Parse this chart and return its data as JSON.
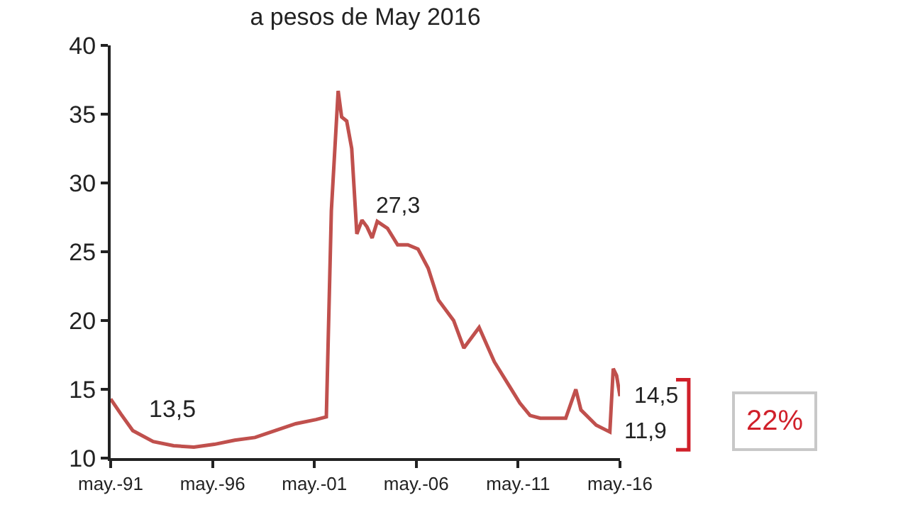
{
  "chart_data": {
    "type": "line",
    "title": "a pesos de May 2016",
    "x": [
      "1991-05",
      "1991-11",
      "1992-06",
      "1993-06",
      "1994-06",
      "1995-06",
      "1996-06",
      "1997-06",
      "1998-06",
      "1999-06",
      "2000-06",
      "2001-06",
      "2001-12",
      "2002-03",
      "2002-07",
      "2002-09",
      "2002-12",
      "2003-03",
      "2003-06",
      "2003-09",
      "2003-12",
      "2004-03",
      "2004-06",
      "2004-12",
      "2005-06",
      "2005-12",
      "2006-06",
      "2006-12",
      "2007-06",
      "2008-03",
      "2008-09",
      "2009-06",
      "2010-03",
      "2010-12",
      "2011-06",
      "2011-12",
      "2012-06",
      "2013-09",
      "2014-03",
      "2014-06",
      "2015-03",
      "2015-11",
      "2016-01",
      "2016-03",
      "2016-05"
    ],
    "series": [
      {
        "color": "#c0504d",
        "values": [
          14.3,
          13.2,
          12.0,
          11.2,
          10.9,
          10.8,
          11.0,
          11.3,
          11.5,
          12.0,
          12.5,
          12.8,
          13.0,
          28.0,
          36.7,
          34.8,
          34.5,
          32.5,
          26.3,
          27.3,
          26.8,
          26.0,
          27.2,
          26.7,
          25.5,
          25.5,
          25.2,
          23.8,
          21.5,
          20.0,
          18.0,
          19.5,
          17.0,
          15.2,
          14.0,
          13.1,
          12.9,
          12.9,
          15.0,
          13.5,
          12.4,
          11.9,
          16.5,
          16.0,
          14.5
        ]
      }
    ],
    "xlim": [
      "1991-05",
      "2016-05"
    ],
    "xticks": [
      {
        "value": "1991-05",
        "label": "may.-91"
      },
      {
        "value": "1996-05",
        "label": "may.-96"
      },
      {
        "value": "2001-05",
        "label": "may.-01"
      },
      {
        "value": "2006-05",
        "label": "may.-06"
      },
      {
        "value": "2011-05",
        "label": "may.-11"
      },
      {
        "value": "2016-05",
        "label": "may.-16"
      }
    ],
    "ylim": [
      10,
      40
    ],
    "yticks": [
      10,
      15,
      20,
      25,
      30,
      35,
      40
    ],
    "marker": "none",
    "line_style": "solid",
    "annotations": [
      "13,5",
      {
        "text": "27,3",
        "x": "2003-09",
        "y": 27.3
      },
      {
        "text": "14,5",
        "x": "2016-05",
        "y": 14.5
      },
      {
        "text": "11,9",
        "x": "2015-11",
        "y": 11.9
      },
      "22%"
    ]
  }
}
